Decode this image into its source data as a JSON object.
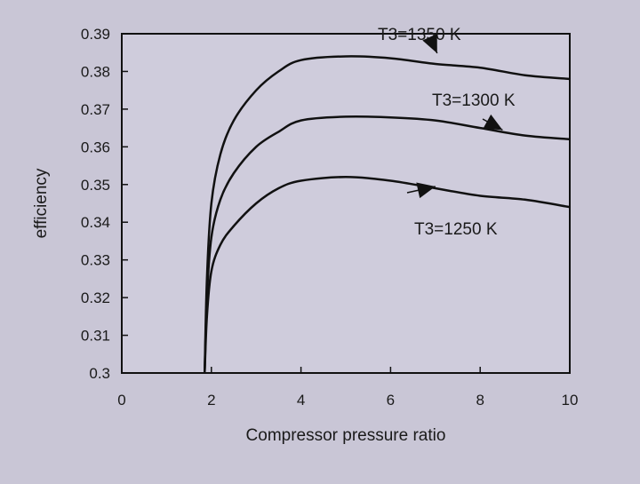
{
  "chart_data": {
    "type": "line",
    "title": "",
    "xlabel": "Compressor pressure ratio",
    "ylabel": "efficiency",
    "xlim": [
      0,
      10
    ],
    "ylim": [
      0.3,
      0.39
    ],
    "xticks": [
      "0",
      "2",
      "4",
      "6",
      "8",
      "10"
    ],
    "yticks": [
      "0.3",
      "0.31",
      "0.32",
      "0.33",
      "0.34",
      "0.35",
      "0.36",
      "0.37",
      "0.38",
      "0.39"
    ],
    "grid": false,
    "series": [
      {
        "name": "T3=1350 K",
        "x": [
          1.85,
          1.9,
          2.0,
          2.2,
          2.5,
          3.0,
          3.5,
          4.0,
          5.0,
          6.0,
          7.0,
          8.0,
          9.0,
          10.0
        ],
        "y": [
          0.3,
          0.325,
          0.345,
          0.358,
          0.367,
          0.375,
          0.38,
          0.383,
          0.384,
          0.3835,
          0.382,
          0.381,
          0.379,
          0.378
        ]
      },
      {
        "name": "T3=1300 K",
        "x": [
          1.85,
          1.9,
          2.0,
          2.2,
          2.5,
          3.0,
          3.5,
          4.0,
          5.0,
          6.0,
          7.0,
          8.0,
          9.0,
          10.0
        ],
        "y": [
          0.3,
          0.32,
          0.336,
          0.346,
          0.353,
          0.36,
          0.364,
          0.367,
          0.368,
          0.3678,
          0.367,
          0.365,
          0.363,
          0.362
        ]
      },
      {
        "name": "T3=1250 K",
        "x": [
          1.85,
          1.9,
          2.0,
          2.2,
          2.5,
          3.0,
          3.5,
          4.0,
          5.0,
          6.0,
          7.0,
          8.0,
          9.0,
          10.0
        ],
        "y": [
          0.3,
          0.315,
          0.327,
          0.334,
          0.339,
          0.345,
          0.349,
          0.351,
          0.352,
          0.351,
          0.349,
          0.347,
          0.346,
          0.344
        ]
      }
    ],
    "annotations": [
      {
        "text": "T3=1350 K",
        "series": 0,
        "arrow_at_x": 7.0
      },
      {
        "text": "T3=1300 K",
        "series": 1,
        "arrow_at_x": 8.5
      },
      {
        "text": "T3=1250 K",
        "series": 2,
        "arrow_at_x": 7.0
      }
    ]
  }
}
